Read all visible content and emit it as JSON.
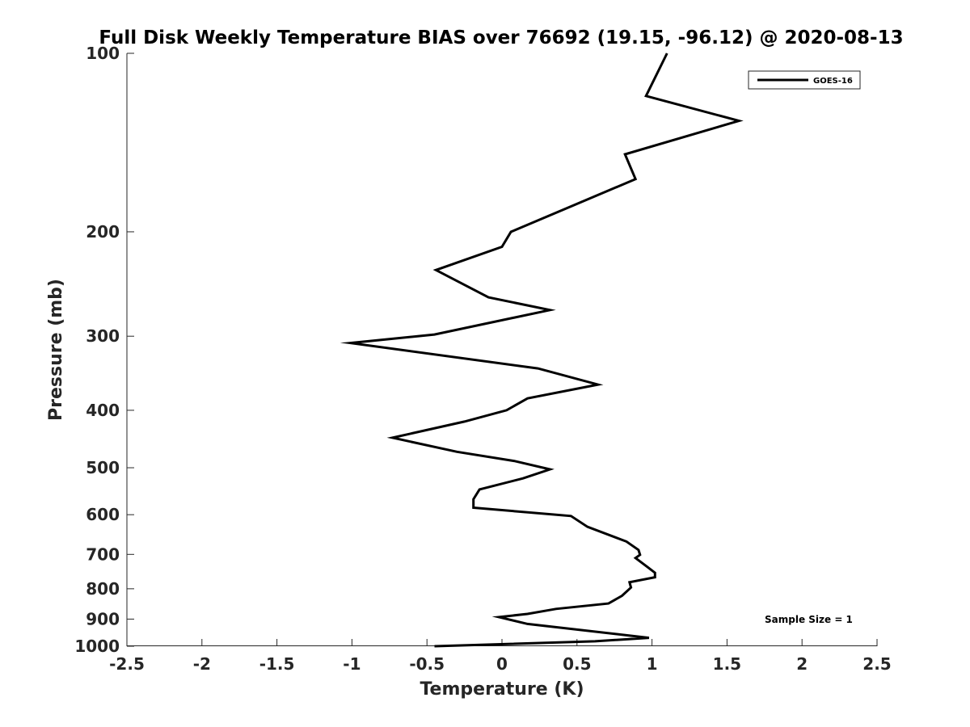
{
  "chart_data": {
    "type": "line",
    "title": "Full Disk Weekly Temperature BIAS over 76692 (19.15, -96.12) @ 2020-08-13",
    "xlabel": "Temperature (K)",
    "ylabel": "Pressure (mb)",
    "xlim": [
      -2.5,
      2.5
    ],
    "ylim": [
      1000,
      100
    ],
    "y_scale": "log",
    "y_reversed": true,
    "x_ticks": [
      -2.5,
      -2,
      -1.5,
      -1,
      -0.5,
      0,
      0.5,
      1,
      1.5,
      2,
      2.5
    ],
    "x_tick_labels": [
      "-2.5",
      "-2",
      "-1.5",
      "-1",
      "-0.5",
      "0",
      "0.5",
      "1",
      "1.5",
      "2",
      "2.5"
    ],
    "y_ticks": [
      100,
      200,
      300,
      400,
      500,
      600,
      700,
      800,
      900,
      1000
    ],
    "y_tick_labels": [
      "100",
      "200",
      "300",
      "400",
      "500",
      "600",
      "700",
      "800",
      "900",
      "1000"
    ],
    "grid": false,
    "legend_position": "top-right",
    "series": [
      {
        "name": "GOES-16",
        "color": "#000000",
        "x": [
          1.1,
          0.96,
          1.58,
          0.82,
          0.89,
          0.06,
          0.0,
          -0.44,
          -0.09,
          0.32,
          -0.45,
          -1.01,
          0.24,
          0.64,
          0.17,
          0.03,
          -0.25,
          -0.73,
          -0.3,
          0.08,
          0.32,
          0.14,
          -0.15,
          -0.19,
          -0.19,
          0.46,
          0.57,
          0.83,
          0.91,
          0.92,
          0.89,
          0.97,
          1.02,
          1.02,
          0.85,
          0.86,
          0.8,
          0.71,
          0.36,
          0.17,
          -0.02,
          0.17,
          0.98,
          0.62,
          -0.45
        ],
        "y": [
          100,
          118,
          130,
          148,
          163,
          200,
          212,
          232,
          258,
          271,
          298,
          308,
          340,
          362,
          382,
          400,
          418,
          445,
          470,
          487,
          503,
          521,
          544,
          565,
          584,
          603,
          629,
          666,
          688,
          701,
          710,
          735,
          752,
          765,
          780,
          796,
          822,
          847,
          865,
          882,
          893,
          917,
          968,
          981,
          1000
        ]
      }
    ],
    "annotations": [
      "Sample Size = 1"
    ]
  }
}
